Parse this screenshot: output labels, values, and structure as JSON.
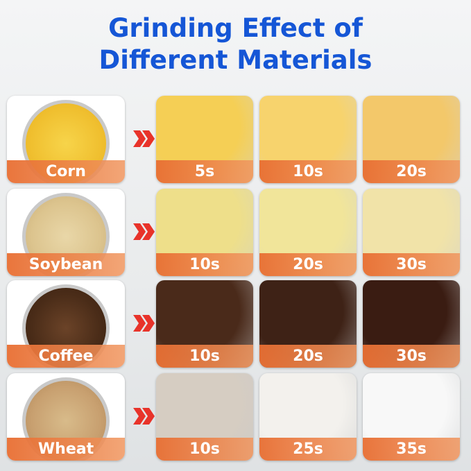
{
  "title": "Grinding Effect of Different Materials",
  "rows": [
    {
      "material": "Corn",
      "times": [
        "5s",
        "10s",
        "20s"
      ]
    },
    {
      "material": "Soybean",
      "times": [
        "10s",
        "20s",
        "30s"
      ]
    },
    {
      "material": "Coffee",
      "times": [
        "10s",
        "20s",
        "30s"
      ]
    },
    {
      "material": "Wheat",
      "times": [
        "10s",
        "25s",
        "35s"
      ]
    }
  ]
}
